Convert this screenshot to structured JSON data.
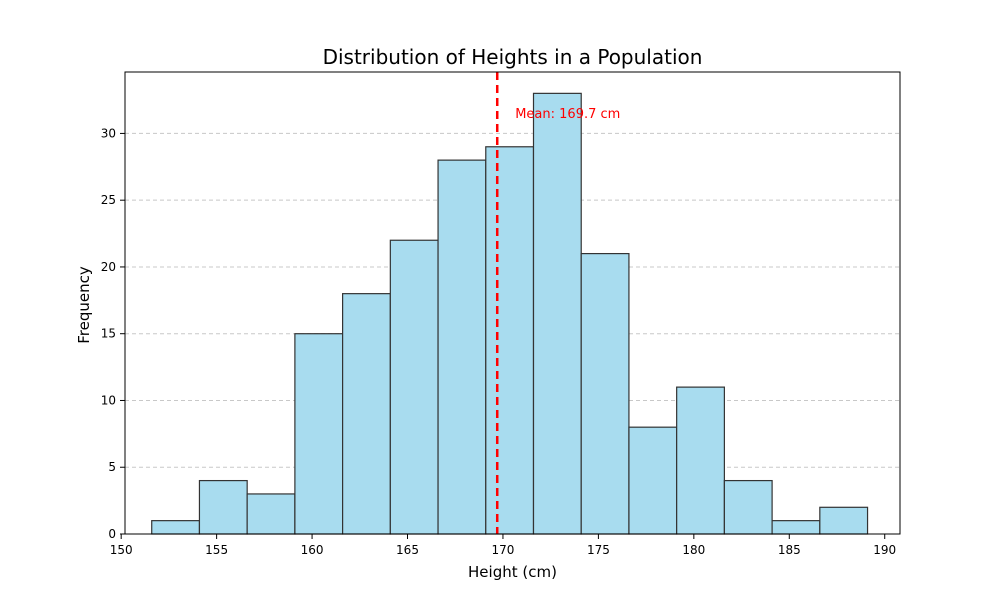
{
  "chart_data": {
    "type": "bar",
    "title": "Distribution of Heights in a Population",
    "xlabel": "Height (cm)",
    "ylabel": "Frequency",
    "xlim": [
      150.2,
      190.8
    ],
    "ylim": [
      0,
      34.6
    ],
    "x_ticks": [
      150,
      155,
      160,
      165,
      170,
      175,
      180,
      185,
      190
    ],
    "y_ticks": [
      0,
      5,
      10,
      15,
      20,
      25,
      30
    ],
    "bins": [
      {
        "start": 151.6,
        "end": 154.1,
        "count": 1
      },
      {
        "start": 154.1,
        "end": 156.6,
        "count": 4
      },
      {
        "start": 156.6,
        "end": 159.1,
        "count": 3
      },
      {
        "start": 159.1,
        "end": 161.6,
        "count": 15
      },
      {
        "start": 161.6,
        "end": 164.1,
        "count": 18
      },
      {
        "start": 164.1,
        "end": 166.6,
        "count": 22
      },
      {
        "start": 166.6,
        "end": 169.1,
        "count": 28
      },
      {
        "start": 169.1,
        "end": 171.6,
        "count": 29
      },
      {
        "start": 171.6,
        "end": 174.1,
        "count": 33
      },
      {
        "start": 174.1,
        "end": 176.6,
        "count": 21
      },
      {
        "start": 176.6,
        "end": 179.1,
        "count": 8
      },
      {
        "start": 179.1,
        "end": 181.6,
        "count": 11
      },
      {
        "start": 181.6,
        "end": 184.1,
        "count": 4
      },
      {
        "start": 184.1,
        "end": 186.6,
        "count": 1
      },
      {
        "start": 186.6,
        "end": 189.1,
        "count": 2
      }
    ],
    "mean": 169.7,
    "mean_label": "Mean: 169.7 cm",
    "grid": {
      "axis": "y",
      "style": "dashed"
    },
    "colors": {
      "bar_fill": "#a8dcef",
      "bar_edge": "#333333",
      "mean_line": "#ff0000",
      "grid": "#c8c8c8"
    }
  }
}
